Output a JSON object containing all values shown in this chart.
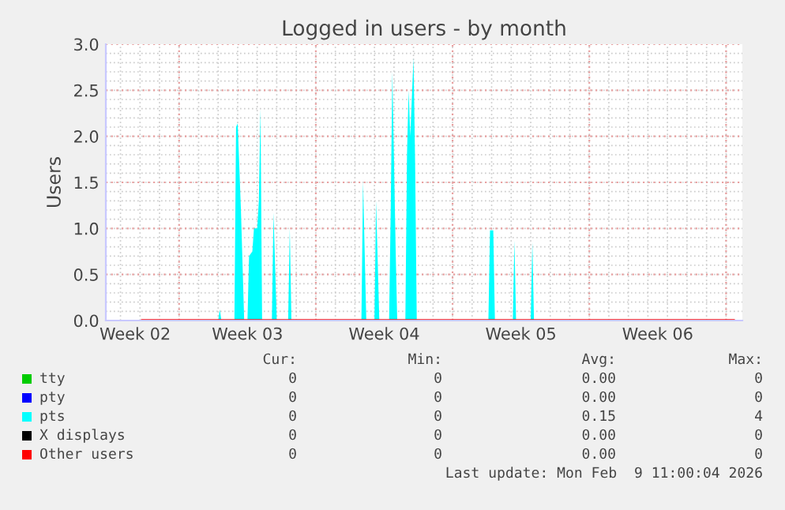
{
  "chart_data": {
    "type": "area",
    "title": "Logged in users - by month",
    "ylabel": "Users",
    "xlim": [
      "2026-01-08T06:00",
      "2026-02-09T20:00"
    ],
    "xticks": [
      {
        "value": "2026-01-09T18:00",
        "label": "Week 02"
      },
      {
        "value": "2026-01-15T12:00",
        "label": "Week 03"
      },
      {
        "value": "2026-01-22T12:00",
        "label": "Week 04"
      },
      {
        "value": "2026-01-29T12:00",
        "label": "Week 05"
      },
      {
        "value": "2026-02-05T12:00",
        "label": "Week 06"
      },
      {
        "value": "2026-01-12",
        "label": null
      },
      {
        "value": "2026-01-19",
        "label": null
      },
      {
        "value": "2026-01-26",
        "label": null
      },
      {
        "value": "2026-02-02",
        "label": null
      },
      {
        "value": "2026-02-09",
        "label": null
      }
    ],
    "ylim": [
      0,
      3.0
    ],
    "yticks": [
      {
        "value": 0,
        "label": "0.0"
      },
      {
        "value": 0.5,
        "label": "0.5"
      },
      {
        "value": 1.0,
        "label": "1.0"
      },
      {
        "value": 1.5,
        "label": "1.5"
      },
      {
        "value": 2.0,
        "label": "2.0"
      },
      {
        "value": 2.5,
        "label": "2.5"
      },
      {
        "value": 3.0,
        "label": "3.0"
      }
    ],
    "grid": true,
    "legend": "bottom",
    "series": [
      {
        "name": "tty",
        "color": "#00cc00",
        "type": "line"
      },
      {
        "name": "pty",
        "color": "#0000ff",
        "type": "line"
      },
      {
        "name": "pts",
        "color": "#00ffff",
        "x": [
          "2026-01-10T02:00",
          "2026-01-14T00:00",
          "2026-01-14T02:00",
          "2026-01-14T04:00",
          "2026-01-14T20:00",
          "2026-01-14T22:00",
          "2026-01-15T00:00",
          "2026-01-15T04:00",
          "2026-01-15T08:00",
          "2026-01-15T12:00",
          "2026-01-15T14:00",
          "2026-01-15T18:00",
          "2026-01-15T20:00",
          "2026-01-16T00:00",
          "2026-01-16T02:00",
          "2026-01-16T04:00",
          "2026-01-16T06:00",
          "2026-01-16T18:00",
          "2026-01-16T20:00",
          "2026-01-17T00:00",
          "2026-01-17T14:00",
          "2026-01-17T16:00",
          "2026-01-17T18:00",
          "2026-01-21T08:00",
          "2026-01-21T10:00",
          "2026-01-21T14:00",
          "2026-01-22T00:00",
          "2026-01-22T02:00",
          "2026-01-22T06:00",
          "2026-01-22T18:00",
          "2026-01-22T20:00",
          "2026-01-22T22:00",
          "2026-01-23T02:00",
          "2026-01-23T04:00",
          "2026-01-23T14:00",
          "2026-01-23T16:00",
          "2026-01-23T18:00",
          "2026-01-23T20:00",
          "2026-01-24T00:00",
          "2026-01-24T02:00",
          "2026-01-24T04:00",
          "2026-01-27T20:00",
          "2026-01-27T22:00",
          "2026-01-28T02:00",
          "2026-01-28T04:00",
          "2026-01-29T02:00",
          "2026-01-29T04:00",
          "2026-01-29T06:00",
          "2026-01-30T00:00",
          "2026-01-30T02:00",
          "2026-01-30T04:00",
          "2026-02-09T10:00"
        ],
        "values": [
          0,
          0,
          0.12,
          0,
          0,
          2.1,
          2.14,
          1.2,
          0,
          0,
          0.7,
          0.75,
          1.0,
          1.0,
          1.3,
          2.3,
          0,
          0,
          1.17,
          0,
          0,
          1.0,
          0,
          0,
          1.51,
          0,
          0,
          1.3,
          0,
          0,
          1.2,
          2.7,
          0.8,
          0,
          0,
          1.8,
          2.5,
          2.0,
          2.85,
          1.7,
          0,
          0,
          0.98,
          0.98,
          0,
          0,
          0.87,
          0,
          0,
          0.85,
          0,
          0
        ]
      },
      {
        "name": "X displays",
        "color": "#000000",
        "type": "line"
      },
      {
        "name": "Other users",
        "color": "#ff0000",
        "type": "line",
        "x": [
          "2026-01-10T02:00",
          "2026-02-09T10:00"
        ],
        "values": [
          0,
          0
        ]
      }
    ],
    "annotations": [
      "Cur:",
      "Min:",
      "Avg:",
      "Max:",
      "0",
      "0",
      "0.00",
      "0",
      "0",
      "0",
      "0.00",
      "0",
      "0",
      "0",
      "0.15",
      "4",
      "0",
      "0",
      "0.00",
      "0",
      "0",
      "0",
      "0.00",
      "0",
      "Last update: Mon Feb  9 11:00:04 2026"
    ]
  }
}
